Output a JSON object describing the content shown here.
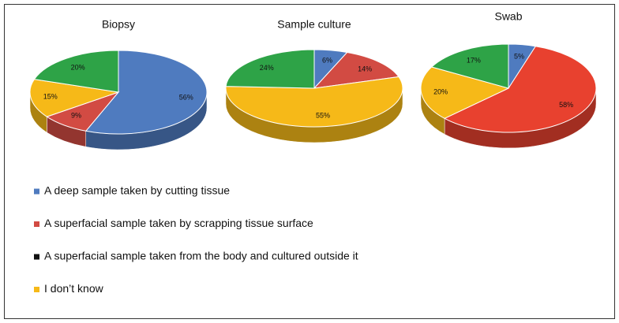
{
  "chart_data": [
    {
      "type": "pie",
      "title": "Biopsy",
      "values": [
        56,
        9,
        15,
        20
      ],
      "value_labels": [
        "56%",
        "9%",
        "15%",
        "20%"
      ],
      "colors": [
        "#4f7bbf",
        "#d24b43",
        "#f6b918",
        "#2ea347"
      ]
    },
    {
      "type": "pie",
      "title": "Sample culture",
      "values": [
        6,
        14,
        55,
        24
      ],
      "value_labels": [
        "6%",
        "14%",
        "55%",
        "24%"
      ],
      "colors": [
        "#4f7bbf",
        "#d24b43",
        "#f6b918",
        "#2ea347"
      ]
    },
    {
      "type": "pie",
      "title": "Swab",
      "values": [
        5,
        58,
        20,
        17
      ],
      "value_labels": [
        "5%",
        "58%",
        "20%",
        "17%"
      ],
      "colors": [
        "#4f7bbf",
        "#e8412f",
        "#f6b918",
        "#2ea347"
      ]
    }
  ],
  "legend": {
    "items": [
      {
        "label": "A deep sample taken by cutting tissue",
        "color": "#4f7bbf"
      },
      {
        "label": "A superfacial sample taken by scrapping tissue surface",
        "color": "#d24b43"
      },
      {
        "label": "A superfacial sample taken from the body and cultured outside it",
        "color": "#111111"
      },
      {
        "label": "I don’t know",
        "color": "#f6b918"
      }
    ]
  }
}
